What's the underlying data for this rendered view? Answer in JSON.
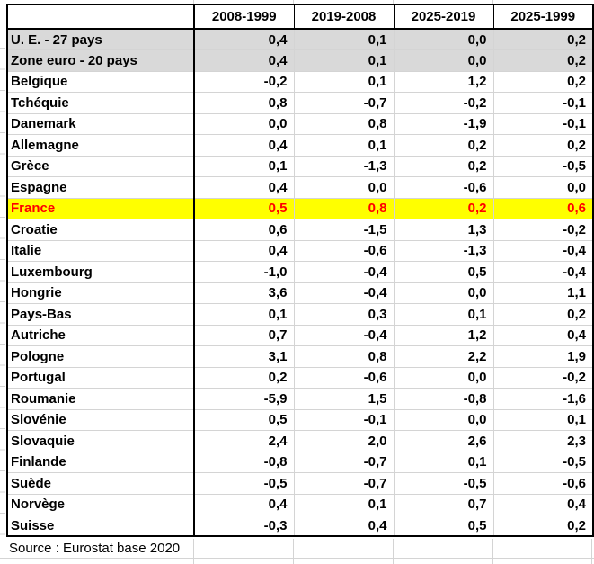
{
  "chart_data": {
    "type": "table",
    "columns": [
      "2008-1999",
      "2019-2008",
      "2025-2019",
      "2025-1999"
    ],
    "corner_label": "",
    "rows": [
      {
        "label": "U. E. - 27 pays",
        "values": [
          "0,4",
          "0,1",
          "0,0",
          "0,2"
        ],
        "style": "aggregate"
      },
      {
        "label": "Zone euro - 20 pays",
        "values": [
          "0,4",
          "0,1",
          "0,0",
          "0,2"
        ],
        "style": "aggregate"
      },
      {
        "label": "Belgique",
        "values": [
          "-0,2",
          "0,1",
          "1,2",
          "0,2"
        ],
        "style": "default"
      },
      {
        "label": "Tchéquie",
        "values": [
          "0,8",
          "-0,7",
          "-0,2",
          "-0,1"
        ],
        "style": "default"
      },
      {
        "label": "Danemark",
        "values": [
          "0,0",
          "0,8",
          "-1,9",
          "-0,1"
        ],
        "style": "default"
      },
      {
        "label": "Allemagne",
        "values": [
          "0,4",
          "0,1",
          "0,2",
          "0,2"
        ],
        "style": "default"
      },
      {
        "label": "Grèce",
        "values": [
          "0,1",
          "-1,3",
          "0,2",
          "-0,5"
        ],
        "style": "default"
      },
      {
        "label": "Espagne",
        "values": [
          "0,4",
          "0,0",
          "-0,6",
          "0,0"
        ],
        "style": "default"
      },
      {
        "label": "France",
        "values": [
          "0,5",
          "0,8",
          "0,2",
          "0,6"
        ],
        "style": "highlight"
      },
      {
        "label": "Croatie",
        "values": [
          "0,6",
          "-1,5",
          "1,3",
          "-0,2"
        ],
        "style": "default"
      },
      {
        "label": "Italie",
        "values": [
          "0,4",
          "-0,6",
          "-1,3",
          "-0,4"
        ],
        "style": "default"
      },
      {
        "label": "Luxembourg",
        "values": [
          "-1,0",
          "-0,4",
          "0,5",
          "-0,4"
        ],
        "style": "default"
      },
      {
        "label": "Hongrie",
        "values": [
          "3,6",
          "-0,4",
          "0,0",
          "1,1"
        ],
        "style": "default"
      },
      {
        "label": "Pays-Bas",
        "values": [
          "0,1",
          "0,3",
          "0,1",
          "0,2"
        ],
        "style": "default"
      },
      {
        "label": "Autriche",
        "values": [
          "0,7",
          "-0,4",
          "1,2",
          "0,4"
        ],
        "style": "default"
      },
      {
        "label": "Pologne",
        "values": [
          "3,1",
          "0,8",
          "2,2",
          "1,9"
        ],
        "style": "default"
      },
      {
        "label": "Portugal",
        "values": [
          "0,2",
          "-0,6",
          "0,0",
          "-0,2"
        ],
        "style": "default"
      },
      {
        "label": "Roumanie",
        "values": [
          "-5,9",
          "1,5",
          "-0,8",
          "-1,6"
        ],
        "style": "default"
      },
      {
        "label": "Slovénie",
        "values": [
          "0,5",
          "-0,1",
          "0,0",
          "0,1"
        ],
        "style": "default"
      },
      {
        "label": "Slovaquie",
        "values": [
          "2,4",
          "2,0",
          "2,6",
          "2,3"
        ],
        "style": "default"
      },
      {
        "label": "Finlande",
        "values": [
          "-0,8",
          "-0,7",
          "0,1",
          "-0,5"
        ],
        "style": "default"
      },
      {
        "label": "Suède",
        "values": [
          "-0,5",
          "-0,7",
          "-0,5",
          "-0,6"
        ],
        "style": "default"
      },
      {
        "label": "Norvège",
        "values": [
          "0,4",
          "0,1",
          "0,7",
          "0,4"
        ],
        "style": "default"
      },
      {
        "label": "Suisse",
        "values": [
          "-0,3",
          "0,4",
          "0,5",
          "0,2"
        ],
        "style": "default"
      }
    ],
    "source": "Source : Eurostat base 2020",
    "layout": {
      "decimal_separator": ",",
      "grid": "faint spreadsheet gridlines outside table"
    }
  },
  "colors": {
    "aggregate_row_bg": "#d9d9d9",
    "highlight_row_bg": "#ffff00",
    "highlight_text": "#ff0000",
    "gridline": "#d4d4d4",
    "border": "#000000"
  }
}
